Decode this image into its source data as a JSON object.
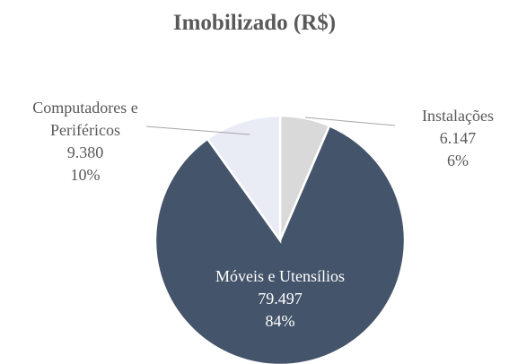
{
  "chart_data": {
    "type": "pie",
    "title": "Imobilizado (R$)",
    "categories": [
      "Instalações",
      "Móveis e Utensílios",
      "Computadores e Periféricos"
    ],
    "values": [
      6147,
      79497,
      9380
    ],
    "value_labels": [
      "6.147",
      "79.497",
      "9.380"
    ],
    "percentages": [
      6,
      84,
      10
    ],
    "percentage_labels": [
      "6%",
      "84%",
      "10%"
    ],
    "colors": [
      "#d9d9d9",
      "#44546a",
      "#e9ebf5"
    ]
  }
}
